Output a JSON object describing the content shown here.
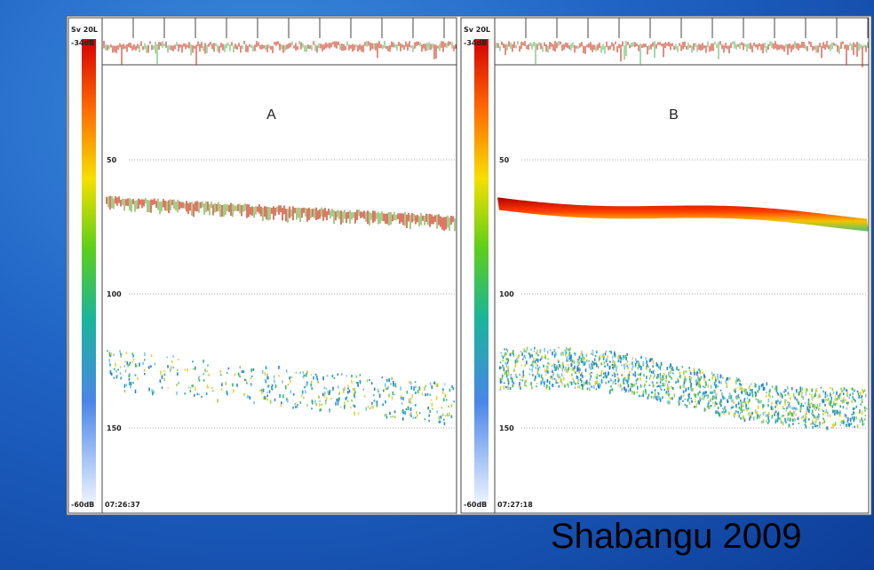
{
  "figure": {
    "panels": [
      {
        "letter": "A",
        "scale_label": "Sv 20L",
        "top_db": "-34dB",
        "bottom_db": "-60dB",
        "time": "07:26:37",
        "depth_labels": [
          "50",
          "100",
          "150"
        ]
      },
      {
        "letter": "B",
        "scale_label": "Sv 20L",
        "top_db": "-34dB",
        "bottom_db": "-60dB",
        "time": "07:27:18",
        "depth_labels": [
          "50",
          "100",
          "150"
        ]
      }
    ],
    "caption": "Shabangu 2009"
  }
}
